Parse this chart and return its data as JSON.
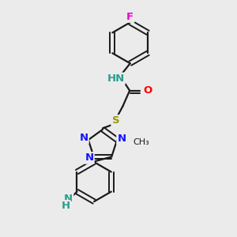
{
  "background_color": "#ebebeb",
  "bond_color": "#1a1a1a",
  "nitrogen_color": "#1414ff",
  "oxygen_color": "#ff0000",
  "sulfur_color": "#999900",
  "fluorine_color": "#ee00cc",
  "nh_color": "#2a9d8f",
  "figsize": [
    3.0,
    3.0
  ],
  "dpi": 100,
  "xlim": [
    0,
    10
  ],
  "ylim": [
    0,
    10
  ]
}
